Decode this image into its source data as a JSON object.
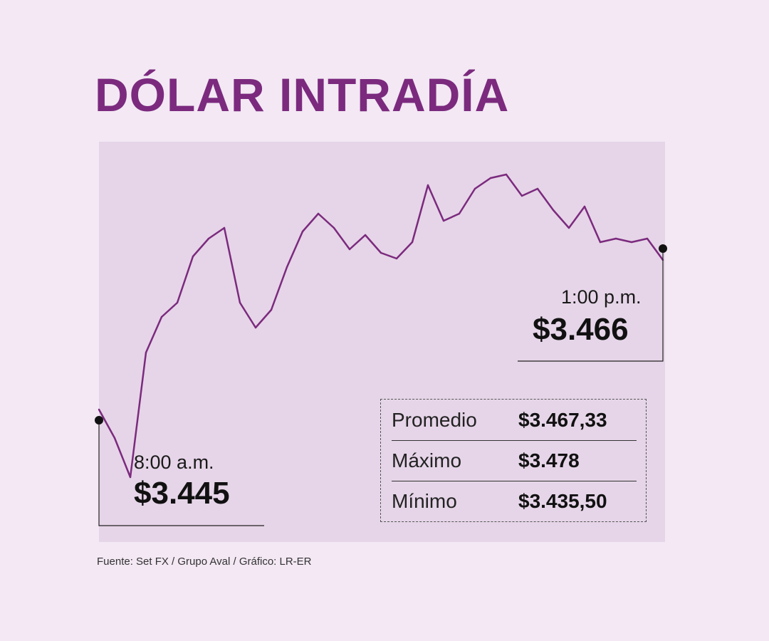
{
  "title": "DÓLAR INTRADÍA",
  "start": {
    "time": "8:00 a.m.",
    "value": "$3.445"
  },
  "end": {
    "time": "1:00 p.m.",
    "value": "$3.466"
  },
  "stats": [
    {
      "label": "Promedio",
      "value": "$3.467,33"
    },
    {
      "label": "Máximo",
      "value": "$3.478"
    },
    {
      "label": "Mínimo",
      "value": "$3.435,50"
    }
  ],
  "source": "Fuente: Set FX / Grupo Aval / Gráfico: LR-ER",
  "colors": {
    "background": "#f3e8f4",
    "area_fill": "#e6d5e8",
    "line": "#7b2a7e",
    "title": "#7b2a7e",
    "watermark": "#dcc3e0"
  },
  "watermark_icon": "dollar-coin-icon",
  "chart_data": {
    "type": "area",
    "title": "DÓLAR INTRADÍA",
    "x": [
      "8:00",
      "8:02",
      "8:05",
      "8:12",
      "8:18",
      "8:25",
      "8:30",
      "8:35",
      "8:40",
      "8:46",
      "8:53",
      "9:00",
      "9:06",
      "9:13",
      "9:20",
      "9:30",
      "9:40",
      "9:50",
      "10:00",
      "10:10",
      "10:20",
      "10:30",
      "10:40",
      "10:50",
      "11:00",
      "11:10",
      "11:20",
      "11:30",
      "11:40",
      "11:50",
      "12:00",
      "12:10",
      "12:20",
      "12:30",
      "12:40",
      "12:50",
      "13:00"
    ],
    "values": [
      3445,
      3441,
      3435.5,
      3453,
      3458,
      3460,
      3466.5,
      3469,
      3470.5,
      3460,
      3456.5,
      3459,
      3465,
      3470,
      3472.5,
      3470.5,
      3467.5,
      3469.5,
      3467,
      3466.2,
      3468.5,
      3476.5,
      3471.5,
      3472.5,
      3476,
      3477.5,
      3478,
      3475,
      3476,
      3473,
      3470.5,
      3473.5,
      3468.5,
      3469,
      3468.5,
      3469,
      3466
    ],
    "ylim": [
      3432,
      3482
    ]
  }
}
